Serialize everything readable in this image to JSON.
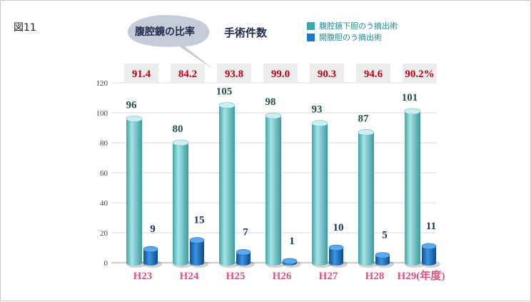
{
  "figure_label": "図11",
  "callout_text": "腹腔鏡の比率",
  "chart_data": {
    "type": "bar",
    "title": "手術件数",
    "categories": [
      "H23",
      "H24",
      "H25",
      "H26",
      "H27",
      "H28",
      "H29(年度)"
    ],
    "series": [
      {
        "name": "腹腔鏡下胆のう摘出術",
        "values": [
          96,
          80,
          105,
          98,
          93,
          87,
          101
        ],
        "color": "#6cc6c9"
      },
      {
        "name": "開腹胆のう摘出術",
        "values": [
          9,
          15,
          7,
          1,
          10,
          5,
          11
        ],
        "color": "#1f78c8"
      }
    ],
    "ratios": [
      "91.4",
      "84.2",
      "93.8",
      "99.0",
      "90.3",
      "94.6",
      "90.2%"
    ],
    "ylim": [
      0,
      120
    ],
    "yticks": [
      "0",
      "20",
      "40",
      "60",
      "80",
      "100",
      "120"
    ],
    "grid": true,
    "legend": "top-right"
  }
}
